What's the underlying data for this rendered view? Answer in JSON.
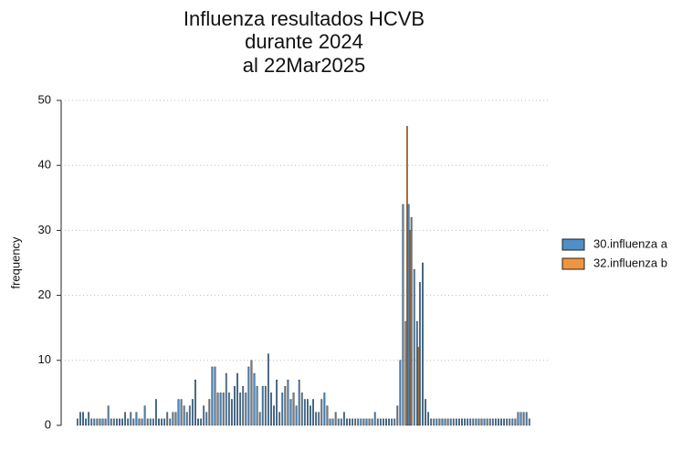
{
  "chart_data": {
    "type": "bar",
    "title": [
      "Influenza resultados HCVB",
      "durante 2024",
      "al 22Mar2025"
    ],
    "y_label": "frequency",
    "categories": [
      null,
      null,
      null,
      null,
      null,
      null,
      null,
      null,
      null,
      null,
      null,
      null,
      null,
      null,
      null,
      null,
      null,
      null,
      null,
      null,
      null,
      null,
      null,
      null,
      null,
      null,
      null,
      null,
      null,
      null,
      null,
      null,
      null,
      null,
      null,
      null,
      null,
      null,
      null,
      null,
      null,
      null,
      null,
      null,
      null,
      null,
      null,
      null,
      null,
      null,
      null,
      null,
      null,
      null,
      null,
      null,
      null,
      null,
      null,
      null,
      null,
      null,
      null,
      null,
      null,
      null,
      null,
      null,
      null,
      null,
      null,
      null,
      null,
      null,
      null,
      null,
      null,
      null,
      null,
      null,
      null,
      null,
      null,
      null,
      null,
      null,
      null,
      null,
      null,
      null,
      null,
      null,
      null,
      null,
      null,
      null,
      null,
      null,
      null,
      null,
      null,
      null,
      null,
      null,
      null,
      null,
      null,
      null,
      null,
      null,
      null,
      null,
      null,
      null,
      null,
      null,
      null,
      null,
      null,
      null,
      null,
      null,
      null,
      null,
      null,
      null,
      null,
      null,
      null,
      null,
      null,
      null,
      null,
      null,
      null,
      null,
      null,
      null,
      null,
      null,
      null,
      null,
      null,
      null,
      null,
      null,
      null,
      null,
      null,
      null,
      null,
      null,
      null,
      null,
      null,
      null,
      null,
      null,
      null,
      null,
      null,
      null
    ],
    "series": [
      {
        "name": "30.influenza a",
        "color": "#4f8fc7",
        "values": [
          1,
          2,
          2,
          1,
          2,
          1,
          1,
          1,
          1,
          1,
          1,
          3,
          1,
          1,
          1,
          1,
          1,
          2,
          1,
          2,
          1,
          2,
          1,
          1,
          3,
          1,
          1,
          1,
          4,
          1,
          1,
          1,
          2,
          1,
          2,
          2,
          4,
          4,
          3,
          2,
          3,
          4,
          7,
          1,
          1,
          3,
          2,
          4,
          9,
          9,
          5,
          5,
          5,
          8,
          5,
          4,
          6,
          8,
          5,
          6,
          5,
          9,
          10,
          8,
          6,
          2,
          6,
          6,
          11,
          5,
          3,
          7,
          2,
          5,
          6,
          7,
          4,
          5,
          3,
          7,
          5,
          4,
          4,
          3,
          4,
          2,
          2,
          4,
          5,
          3,
          1,
          1,
          2,
          1,
          1,
          2,
          1,
          1,
          1,
          1,
          1,
          1,
          1,
          1,
          1,
          1,
          2,
          1,
          1,
          1,
          1,
          1,
          1,
          1,
          3,
          10,
          34,
          16,
          34,
          32,
          24,
          16,
          22,
          25,
          4,
          2,
          1,
          1,
          1,
          1,
          1,
          1,
          1,
          1,
          1,
          1,
          1,
          1,
          1,
          1,
          1,
          1,
          1,
          1,
          1,
          1,
          1,
          1,
          1,
          1,
          1,
          1,
          1,
          1,
          1,
          1,
          1,
          2,
          2,
          2,
          2,
          1
        ]
      },
      {
        "name": "32.influenza b",
        "color": "#f0953f",
        "values": [
          0,
          0,
          0,
          0,
          0,
          0,
          0,
          0,
          0,
          0,
          0,
          0,
          0,
          0,
          0,
          0,
          0,
          0,
          0,
          0,
          0,
          0,
          0,
          0,
          0,
          0,
          0,
          0,
          0,
          0,
          0,
          0,
          0,
          0,
          0,
          0,
          0,
          0,
          0,
          0,
          0,
          0,
          0,
          0,
          0,
          0,
          0,
          0,
          0,
          0,
          0,
          0,
          0,
          0,
          0,
          0,
          0,
          0,
          0,
          0,
          0,
          0,
          0,
          0,
          0,
          0,
          0,
          0,
          0,
          0,
          0,
          0,
          0,
          0,
          0,
          0,
          0,
          0,
          0,
          0,
          0,
          0,
          0,
          0,
          0,
          0,
          0,
          0,
          0,
          0,
          0,
          0,
          0,
          0,
          0,
          0,
          0,
          0,
          0,
          0,
          0,
          0,
          0,
          0,
          0,
          0,
          0,
          0,
          0,
          0,
          0,
          0,
          0,
          0,
          0,
          0,
          0,
          46,
          30,
          0,
          0,
          12,
          0,
          0,
          0,
          0,
          0,
          0,
          0,
          0,
          0,
          0,
          0,
          0,
          0,
          0,
          0,
          0,
          0,
          0,
          0,
          0,
          0,
          0,
          0,
          0,
          0,
          0,
          0,
          0,
          0,
          0,
          0,
          0,
          0,
          0,
          0,
          0,
          0,
          0,
          0,
          0
        ]
      }
    ],
    "ylim": [
      0,
      50
    ],
    "yticks": [
      0,
      10,
      20,
      30,
      40,
      50
    ],
    "grid": true,
    "legend": "right"
  }
}
